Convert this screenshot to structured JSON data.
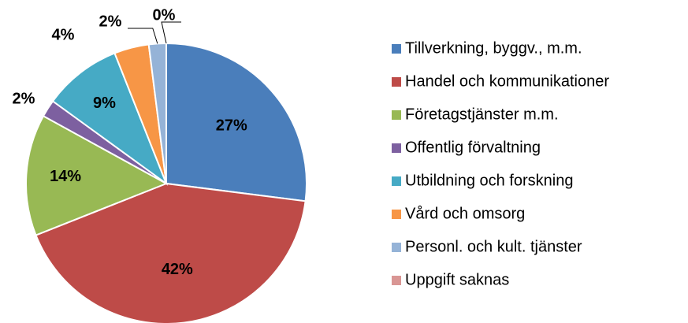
{
  "chart_data": {
    "type": "pie",
    "categories": [
      "Tillverkning, byggv., m.m.",
      "Handel och kommunikationer",
      "Företagstjänster m.m.",
      "Offentlig förvaltning",
      "Utbildning och forskning",
      "Vård och omsorg",
      "Personl. och kult. tjänster",
      "Uppgift saknas"
    ],
    "values": [
      27,
      42,
      14,
      2,
      9,
      4,
      2,
      0
    ],
    "value_labels": [
      "27%",
      "42%",
      "14%",
      "2%",
      "9%",
      "4%",
      "2%",
      "0%"
    ],
    "colors": [
      "#4a7ebb",
      "#be4b48",
      "#98b954",
      "#7d60a0",
      "#46aac5",
      "#f79646",
      "#95b3d7",
      "#d99694"
    ]
  }
}
